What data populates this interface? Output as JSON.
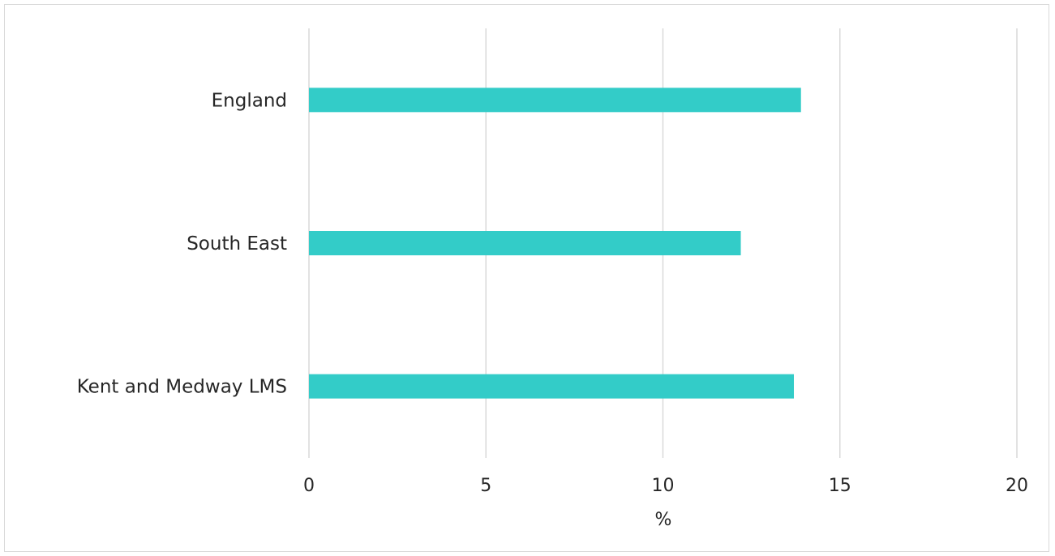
{
  "chart_data": {
    "type": "bar",
    "orientation": "horizontal",
    "categories": [
      "England",
      "South East",
      "Kent and Medway LMS"
    ],
    "values": [
      13.9,
      12.2,
      13.7
    ],
    "xlabel": "%",
    "ylabel": "",
    "xlim": [
      0,
      20
    ],
    "xticks": [
      "0",
      "5",
      "10",
      "15",
      "20"
    ],
    "grid": "vertical",
    "legend": "none",
    "colors": {
      "bar": "#33CCC8",
      "grid": "#D9D9D9",
      "text": "#262626"
    }
  }
}
